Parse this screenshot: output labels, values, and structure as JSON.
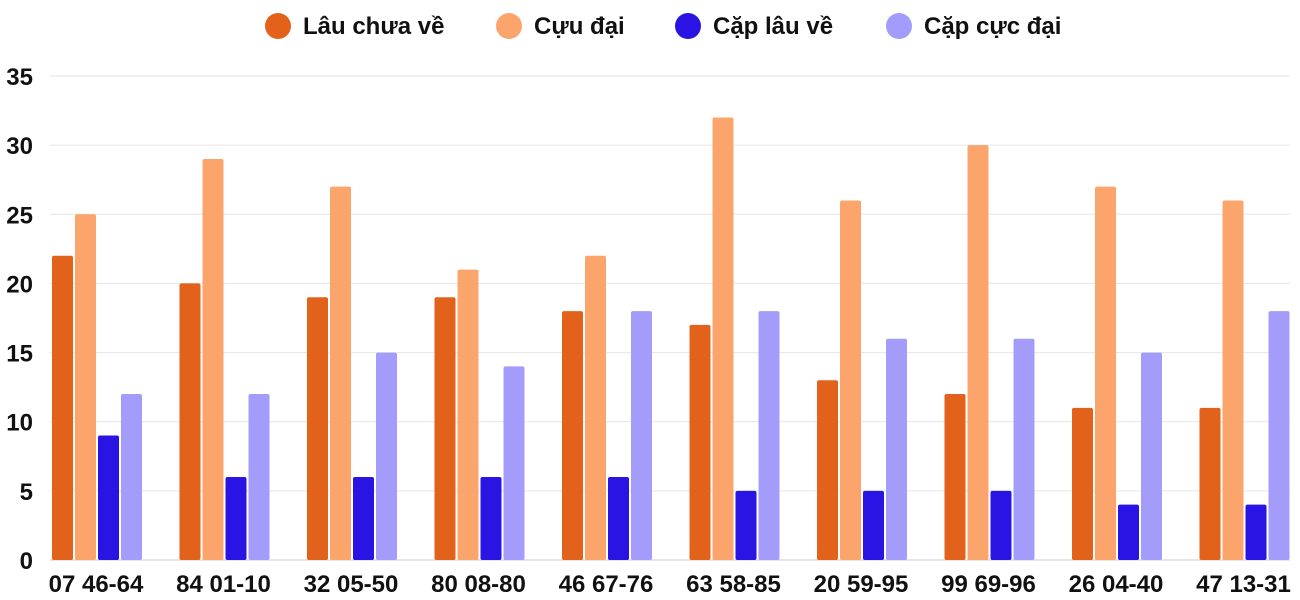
{
  "chart_data": {
    "type": "bar",
    "title": "",
    "xlabel": "",
    "ylabel": "",
    "ylim": [
      0,
      35
    ],
    "yticks": [
      0,
      5,
      10,
      15,
      20,
      25,
      30,
      35
    ],
    "grid": true,
    "legend_position": "top-center",
    "categories": [
      "07 46-64",
      "84 01-10",
      "32 05-50",
      "80 08-80",
      "46 67-76",
      "63 58-85",
      "20 59-95",
      "99 69-96",
      "26 04-40",
      "47 13-31"
    ],
    "series": [
      {
        "name": "Lâu chưa về",
        "color": "#e2621b",
        "values": [
          22,
          20,
          19,
          19,
          18,
          17,
          13,
          12,
          11,
          11
        ]
      },
      {
        "name": "Cựu đại",
        "color": "#fba46c",
        "values": [
          25,
          29,
          27,
          21,
          22,
          32,
          26,
          30,
          27,
          26
        ]
      },
      {
        "name": "Cặp lâu về",
        "color": "#2a14e4",
        "values": [
          9,
          6,
          6,
          6,
          6,
          5,
          5,
          5,
          4,
          4
        ]
      },
      {
        "name": "Cặp cực đại",
        "color": "#a39cfa",
        "values": [
          12,
          12,
          15,
          14,
          18,
          18,
          16,
          16,
          15,
          18
        ]
      }
    ]
  }
}
